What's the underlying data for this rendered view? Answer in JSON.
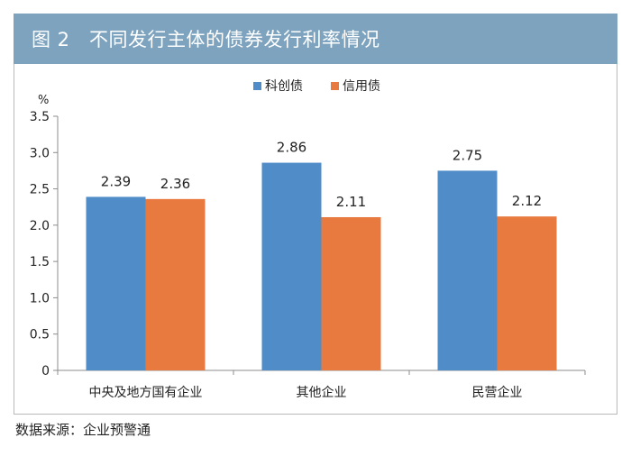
{
  "header": {
    "title": "图 2   不同发行主体的债券发行利率情况"
  },
  "chart_data": {
    "type": "bar",
    "title": "",
    "ylabel": "%",
    "xlabel": "",
    "categories": [
      "中央及地方国有企业",
      "其他企业",
      "民营企业"
    ],
    "series": [
      {
        "name": "科创债",
        "values": [
          2.39,
          2.86,
          2.75
        ],
        "color": "#4f8cc8"
      },
      {
        "name": "信用债",
        "values": [
          2.36,
          2.11,
          2.12
        ],
        "color": "#e87a3f"
      }
    ],
    "ylim": [
      0,
      3.5
    ],
    "yticks": [
      "0",
      "0.5",
      "1.0",
      "1.5",
      "2.0",
      "2.5",
      "3.0",
      "3.5"
    ],
    "value_labels": [
      [
        "2.39",
        "2.86",
        "2.75"
      ],
      [
        "2.36",
        "2.11",
        "2.12"
      ]
    ],
    "legend_position": "top-center",
    "grid": false
  },
  "footer": {
    "source": "数据来源：企业预警通"
  }
}
